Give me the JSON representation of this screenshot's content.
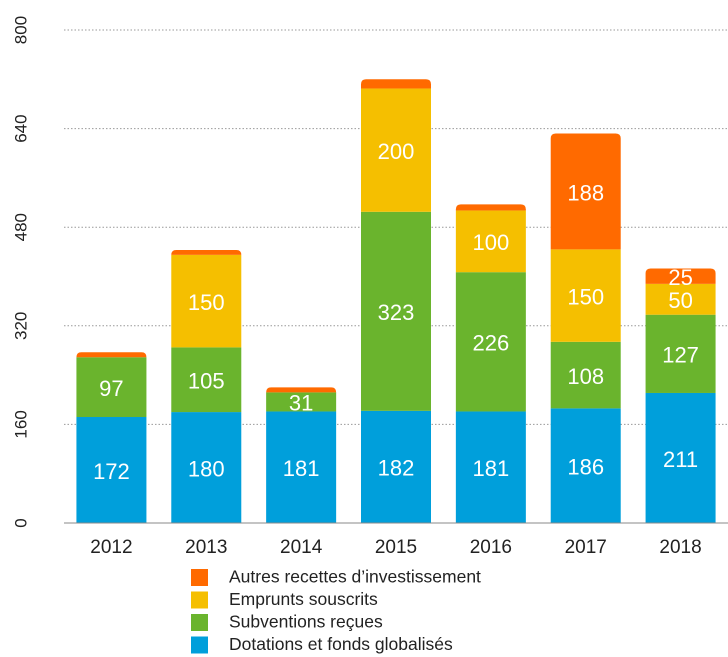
{
  "chart_data": {
    "type": "stacked_bar",
    "categories": [
      "2012",
      "2013",
      "2014",
      "2015",
      "2016",
      "2017",
      "2018"
    ],
    "series": [
      {
        "name": "Dotations et fonds globalisés",
        "color": "#009fdb",
        "values": [
          172,
          180,
          181,
          182,
          181,
          186,
          211
        ],
        "value_labels": [
          "172",
          "180",
          "181",
          "182",
          "181",
          "186",
          "211"
        ]
      },
      {
        "name": "Subventions reçues",
        "color": "#6ab42d",
        "values": [
          97,
          105,
          31,
          323,
          226,
          108,
          127
        ],
        "value_labels": [
          "97",
          "105",
          "31",
          "323",
          "226",
          "108",
          "127"
        ]
      },
      {
        "name": "Emprunts souscrits",
        "color": "#f5bf00",
        "values": [
          null,
          150,
          null,
          200,
          100,
          150,
          50
        ],
        "value_labels": [
          null,
          "150",
          null,
          "200",
          "100",
          "150",
          "50"
        ]
      },
      {
        "name": "Autres recettes d’investissement",
        "color": "#ff6a00",
        "values": [
          8,
          8,
          8,
          15,
          10,
          188,
          25
        ],
        "value_labels": [
          null,
          null,
          null,
          null,
          null,
          "188",
          "25"
        ]
      }
    ],
    "ylim": [
      0,
      800
    ],
    "yticks": [
      0,
      160,
      320,
      480,
      640,
      800
    ],
    "grid": true
  }
}
